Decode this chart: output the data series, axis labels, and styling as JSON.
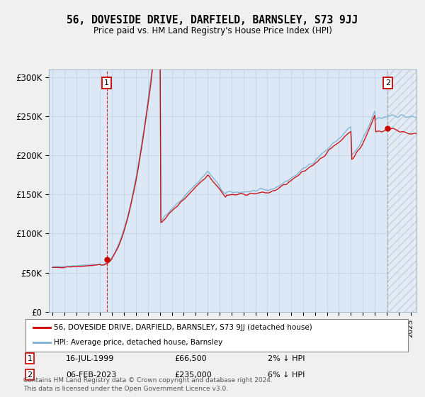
{
  "title": "56, DOVESIDE DRIVE, DARFIELD, BARNSLEY, S73 9JJ",
  "subtitle": "Price paid vs. HM Land Registry's House Price Index (HPI)",
  "background_color": "#f0f0f0",
  "plot_bg_color": "#dce8f5",
  "ylabel": "",
  "xlabel": "",
  "ylim": [
    0,
    310000
  ],
  "yticks": [
    0,
    50000,
    100000,
    150000,
    200000,
    250000,
    300000
  ],
  "ytick_labels": [
    "£0",
    "£50K",
    "£100K",
    "£150K",
    "£200K",
    "£250K",
    "£300K"
  ],
  "hpi_color": "#7ab0d4",
  "price_color": "#cc0000",
  "sale1_label": "16-JUL-1999",
  "sale1_price": "£66,500",
  "sale1_hpi": "2% ↓ HPI",
  "sale2_label": "06-FEB-2023",
  "sale2_price": "£235,000",
  "sale2_hpi": "6% ↓ HPI",
  "legend_line1": "56, DOVESIDE DRIVE, DARFIELD, BARNSLEY, S73 9JJ (detached house)",
  "legend_line2": "HPI: Average price, detached house, Barnsley",
  "footer": "Contains HM Land Registry data © Crown copyright and database right 2024.\nThis data is licensed under the Open Government Licence v3.0.",
  "sale1_x": 1999.54,
  "sale1_y": 66500,
  "sale2_x": 2023.09,
  "sale2_y": 235000,
  "xmin": 1995.0,
  "xmax": 2025.5
}
